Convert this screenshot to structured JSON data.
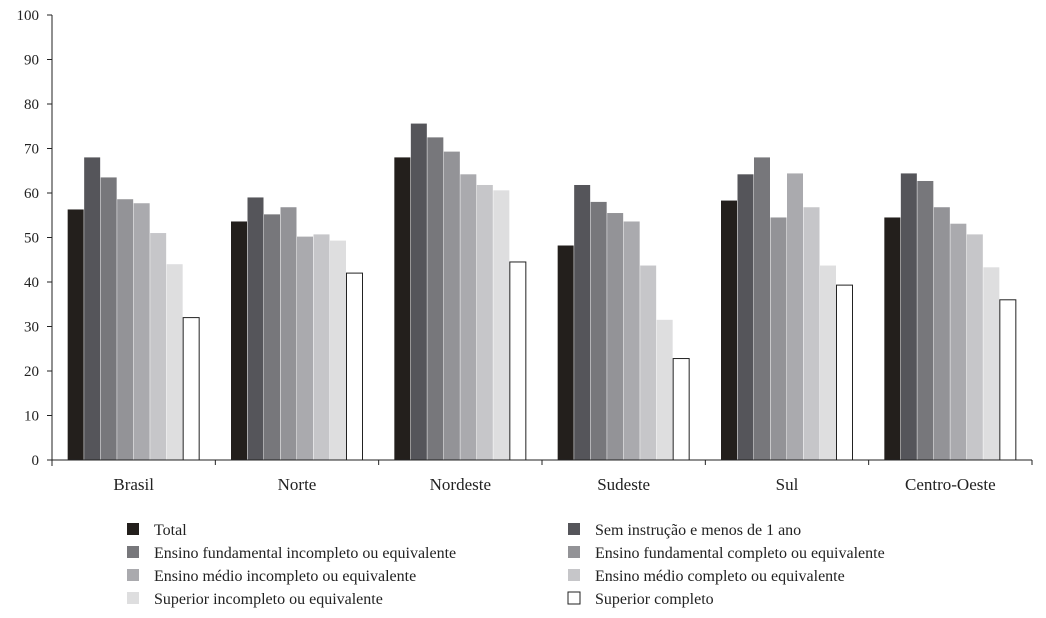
{
  "chart_data": {
    "type": "bar",
    "title": "",
    "xlabel": "",
    "ylabel": "",
    "ylim": [
      0,
      100
    ],
    "yticks": [
      0,
      10,
      20,
      30,
      40,
      50,
      60,
      70,
      80,
      90,
      100
    ],
    "grid": false,
    "legend_position": "bottom",
    "categories": [
      "Brasil",
      "Norte",
      "Nordeste",
      "Sudeste",
      "Sul",
      "Centro-Oeste"
    ],
    "series": [
      {
        "name": "Total",
        "color": "#231f1c",
        "values": [
          56.3,
          53.6,
          68.0,
          48.2,
          58.3,
          54.5
        ]
      },
      {
        "name": "Sem instrução e menos de 1 ano",
        "color": "#55555a",
        "values": [
          68.0,
          59.0,
          75.6,
          61.8,
          64.2,
          64.4
        ]
      },
      {
        "name": "Ensino fundamental incompleto ou equivalente",
        "color": "#77777b",
        "values": [
          63.5,
          55.2,
          72.5,
          58.0,
          68.0,
          62.7
        ]
      },
      {
        "name": "Ensino fundamental completo ou equivalente",
        "color": "#939397",
        "values": [
          58.6,
          56.8,
          69.3,
          55.5,
          54.5,
          56.8
        ]
      },
      {
        "name": "Ensino médio incompleto ou equivalente",
        "color": "#aaaaae",
        "values": [
          57.7,
          50.2,
          64.2,
          53.6,
          64.4,
          53.1
        ]
      },
      {
        "name": "Ensino médio completo ou equivalente",
        "color": "#c6c6c9",
        "values": [
          51.0,
          50.7,
          61.8,
          43.7,
          56.8,
          50.7
        ]
      },
      {
        "name": "Superior incompleto ou equivalente",
        "color": "#dededf",
        "values": [
          44.0,
          49.3,
          60.6,
          31.5,
          43.7,
          43.3
        ]
      },
      {
        "name": "Superior completo",
        "color": "#ffffff",
        "values": [
          32.0,
          42.0,
          44.5,
          22.8,
          39.3,
          36.0
        ]
      }
    ]
  }
}
